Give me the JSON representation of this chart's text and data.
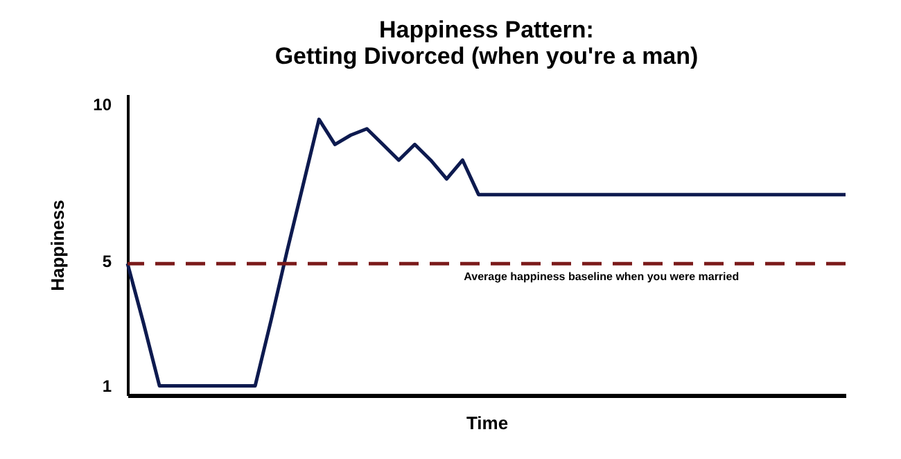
{
  "chart_data": {
    "type": "line",
    "title": [
      "Happiness Pattern:",
      "Getting Divorced (when you're a man)"
    ],
    "xlabel": "Time",
    "ylabel": "Happiness",
    "categories": [
      null,
      null,
      null,
      null,
      null,
      null,
      null,
      null,
      null,
      null,
      null,
      null,
      null,
      null,
      null,
      null,
      null,
      null,
      null,
      null,
      null,
      null,
      null,
      null,
      null,
      null,
      null,
      null,
      null,
      null,
      null,
      null,
      null,
      null,
      null,
      null,
      null,
      null,
      null,
      null,
      null,
      null,
      null,
      null,
      null,
      null
    ],
    "series": [
      {
        "color": "#0d1a4f",
        "values": [
          4.9,
          3.0,
          1,
          1,
          1,
          1,
          1,
          1,
          1,
          3.1,
          5.3,
          7.4,
          9.5,
          8.7,
          9.0,
          9.2,
          8.7,
          8.2,
          8.7,
          8.2,
          7.6,
          8.2,
          7.1,
          7.1,
          7.1,
          7.1,
          7.1,
          7.1,
          7.1,
          7.1,
          7.1,
          7.1,
          7.1,
          7.1,
          7.1,
          7.1,
          7.1,
          7.1,
          7.1,
          7.1,
          7.1,
          7.1,
          7.1,
          7.1,
          7.1,
          7.1
        ]
      }
    ],
    "ylim": [
      0.7,
      10.3
    ],
    "yticks": [
      1,
      5,
      10
    ],
    "marker": "none",
    "line_style": "solid",
    "ref_lines": [
      {
        "axis": "y",
        "value": 4.9,
        "label": "Average happiness baseline when you were married",
        "color": "#7b1a1a",
        "line_style": "dashed"
      }
    ]
  }
}
